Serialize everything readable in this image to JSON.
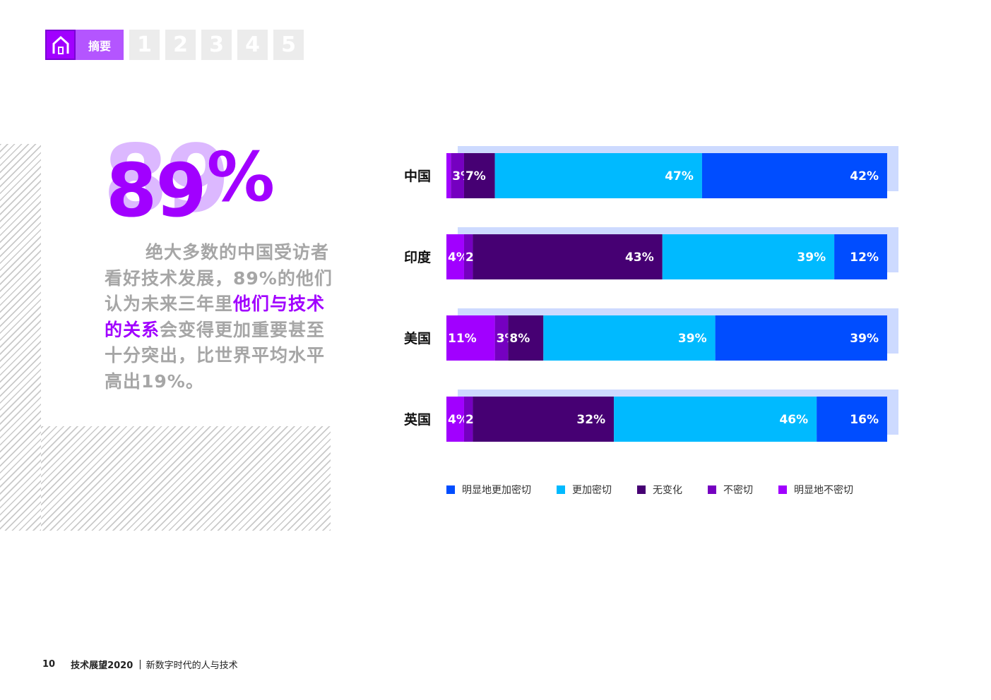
{
  "nav": {
    "summary_label": "摘要",
    "pages": [
      "1",
      "2",
      "3",
      "4",
      "5"
    ]
  },
  "headline": {
    "number": "89",
    "percent": "%",
    "text_before": "绝大多数的中国受访者看好技术发展，89%的他们认为未来三年里",
    "text_highlight": "他们与技术的关系",
    "text_after": "会变得更加重要甚至十分突出，比世界平均水平高出19%。"
  },
  "chart_data": {
    "type": "bar",
    "orientation": "horizontal",
    "stacked": true,
    "categories": [
      "中国",
      "印度",
      "美国",
      "英国"
    ],
    "series": [
      {
        "name": "明显地不密切",
        "color": "#a100ff",
        "values": [
          1,
          4,
          11,
          4
        ],
        "labels": [
          "",
          "4%",
          "11%",
          "4%"
        ]
      },
      {
        "name": "不密切",
        "color": "#7500c0",
        "values": [
          3,
          2,
          3,
          2
        ],
        "labels": [
          "3%",
          "2%",
          "3%",
          "2%"
        ]
      },
      {
        "name": "无变化",
        "color": "#460073",
        "values": [
          7,
          43,
          8,
          32
        ],
        "labels": [
          "7%",
          "43%",
          "8%",
          "32%"
        ]
      },
      {
        "name": "更加密切",
        "color": "#00baff",
        "values": [
          47,
          39,
          39,
          46
        ],
        "labels": [
          "47%",
          "39%",
          "39%",
          "46%"
        ]
      },
      {
        "name": "明显地更加密切",
        "color": "#004dff",
        "values": [
          42,
          12,
          39,
          16
        ],
        "labels": [
          "42%",
          "12%",
          "39%",
          "16%"
        ]
      }
    ],
    "legend_order": [
      "明显地更加密切",
      "更加密切",
      "无变化",
      "不密切",
      "明显地不密切"
    ],
    "legend_position": "bottom"
  },
  "footer": {
    "page_number": "10",
    "report_title": "技术展望2020",
    "separator": "|",
    "subtitle": "新数字时代的人与技术"
  }
}
